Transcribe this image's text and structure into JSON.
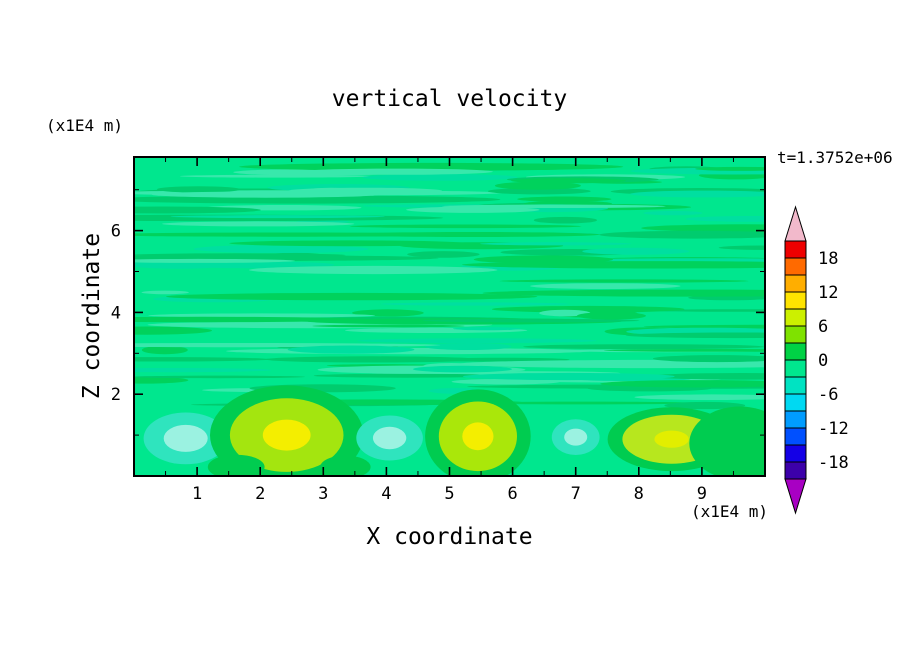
{
  "title": "vertical velocity",
  "time_label": "t=1.3752e+06",
  "axes": {
    "x_label": "X coordinate",
    "y_label": "Z coordinate",
    "x_units": "(x1E4 m)",
    "y_units": "(x1E4 m)"
  },
  "chart_data": {
    "type": "heatmap",
    "subtype": "filled-contour",
    "title": "vertical velocity",
    "time_annotation": "t=1.3752e+06",
    "xlabel": "X coordinate (x1E4 m)",
    "ylabel": "Z coordinate (x1E4 m)",
    "x_range": [
      0,
      10
    ],
    "y_range": [
      0,
      7.8
    ],
    "x_ticks": [
      1,
      2,
      3,
      4,
      5,
      6,
      7,
      8,
      9
    ],
    "y_ticks": [
      2,
      4,
      6
    ],
    "grid": false,
    "legend_position": "right-colorbar",
    "colorbar": {
      "tick_labels": [
        18,
        12,
        6,
        0,
        -6,
        -12,
        -18
      ],
      "level_min": -21,
      "level_max": 21,
      "level_step": 3,
      "segment_colors": [
        "#EE0000",
        "#FF6A00",
        "#FFAE00",
        "#FFE400",
        "#CCF000",
        "#7FE200",
        "#00D245",
        "#00E78E",
        "#00E3C2",
        "#00D9F2",
        "#009CFF",
        "#0050FF",
        "#1400E6",
        "#3C00AA"
      ],
      "over_color": "#F2B9CB",
      "under_color": "#A800C3"
    },
    "palette": {
      "background": "#00E78E"
    },
    "texture": {
      "comment": "wispy horizontal near-zero velocity streaks in upper region",
      "seed": 123457,
      "count": 140,
      "colors": [
        "#00D25C",
        "#00DFA0",
        "#00CC6E",
        "#38E8AC"
      ]
    },
    "features": [
      {
        "kind": "downdraft",
        "x": 0.82,
        "z": 0.92,
        "rx": 0.58,
        "rz": 0.55,
        "layers": [
          {
            "s": 1.15,
            "color": "#2FE4BE"
          },
          {
            "s": 0.6,
            "color": "#9BF2E1"
          }
        ]
      },
      {
        "kind": "updraft",
        "x": 2.42,
        "z": 1.0,
        "rx": 0.9,
        "rz": 0.9,
        "layers": [
          {
            "s": 1.35,
            "color": "#00CC50"
          },
          {
            "s": 1.0,
            "color": "#A4E50F"
          },
          {
            "s": 0.42,
            "color": "#F4EE00"
          }
        ]
      },
      {
        "kind": "downdraft",
        "x": 4.05,
        "z": 0.93,
        "rx": 0.48,
        "rz": 0.5,
        "layers": [
          {
            "s": 1.1,
            "color": "#2FE4BE"
          },
          {
            "s": 0.55,
            "color": "#9BF2E1"
          }
        ]
      },
      {
        "kind": "updraft",
        "x": 5.45,
        "z": 0.97,
        "rx": 0.62,
        "rz": 0.85,
        "layers": [
          {
            "s": 1.35,
            "color": "#00CC50"
          },
          {
            "s": 1.0,
            "color": "#AAE70A"
          },
          {
            "s": 0.4,
            "color": "#F4EE00"
          }
        ]
      },
      {
        "kind": "downdraft",
        "x": 7.0,
        "z": 0.95,
        "rx": 0.33,
        "rz": 0.38,
        "layers": [
          {
            "s": 1.15,
            "color": "#2FE4BE"
          },
          {
            "s": 0.55,
            "color": "#9BF2E1"
          }
        ]
      },
      {
        "kind": "updraft",
        "x": 8.52,
        "z": 0.9,
        "rx": 0.78,
        "rz": 0.6,
        "layers": [
          {
            "s": 1.3,
            "color": "#00CC50"
          },
          {
            "s": 1.0,
            "color": "#B7E71E"
          },
          {
            "s": 0.35,
            "color": "#E2EE00"
          }
        ]
      },
      {
        "kind": "patch",
        "x": 9.6,
        "z": 0.8,
        "rx": 0.8,
        "rz": 0.9,
        "layers": [
          {
            "s": 1.0,
            "color": "#00CC50"
          }
        ]
      },
      {
        "kind": "patch",
        "x": 1.62,
        "z": 0.22,
        "rx": 0.45,
        "rz": 0.3,
        "layers": [
          {
            "s": 1.0,
            "color": "#00CC50"
          }
        ]
      },
      {
        "kind": "patch",
        "x": 3.35,
        "z": 0.22,
        "rx": 0.4,
        "rz": 0.28,
        "layers": [
          {
            "s": 1.0,
            "color": "#00CC50"
          }
        ]
      }
    ]
  }
}
